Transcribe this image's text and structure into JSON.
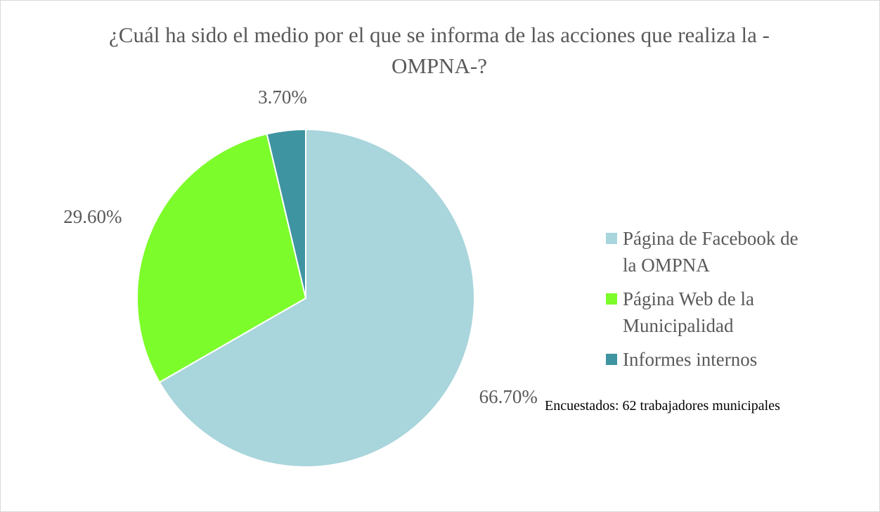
{
  "chart_data": {
    "type": "pie",
    "title": "¿Cuál ha sido el medio por el que se informa de las acciones que realiza la -OMPNA-?",
    "categories": [
      "Página de Facebook de la OMPNA",
      "Página Web de la Municipalidad",
      "Informes internos"
    ],
    "values": [
      66.7,
      29.6,
      3.7
    ],
    "value_labels": [
      "66.70%",
      "29.60%",
      "3.70%"
    ],
    "colors": [
      "#a9d5dc",
      "#7dfc2b",
      "#3f94a1"
    ],
    "legend": "right",
    "annotation": "Encuestados: 62 trabajadores municipales"
  }
}
